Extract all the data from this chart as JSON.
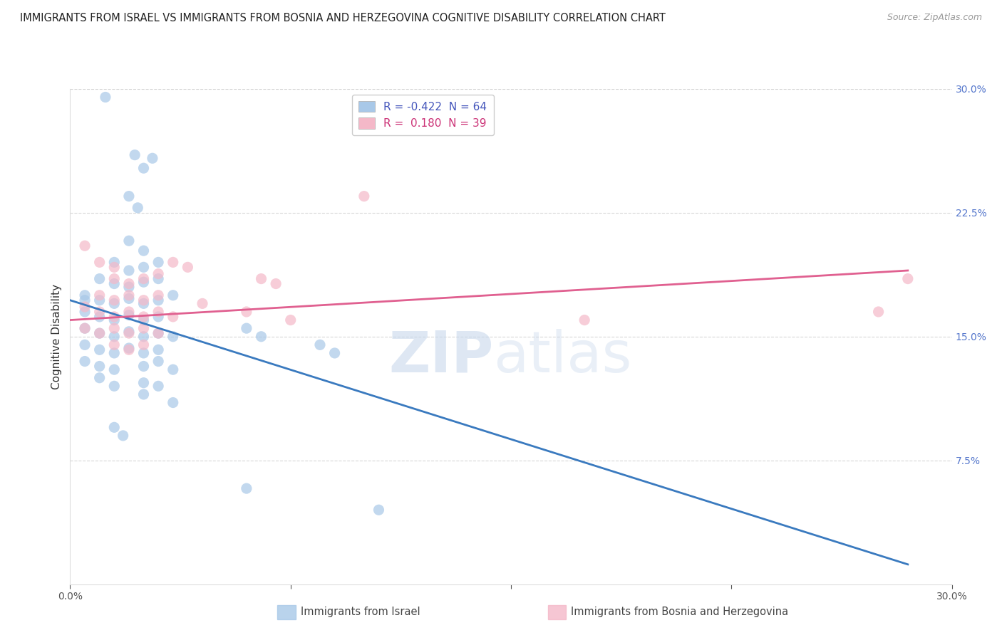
{
  "title": "IMMIGRANTS FROM ISRAEL VS IMMIGRANTS FROM BOSNIA AND HERZEGOVINA COGNITIVE DISABILITY CORRELATION CHART",
  "source": "Source: ZipAtlas.com",
  "ylabel": "Cognitive Disability",
  "legend_entry1": "R = -0.422  N = 64",
  "legend_entry2": "R =  0.180  N = 39",
  "legend_label1": "Immigrants from Israel",
  "legend_label2": "Immigrants from Bosnia and Herzegovina",
  "blue_color": "#a8c8e8",
  "pink_color": "#f4b8c8",
  "blue_line_color": "#3a7abf",
  "pink_line_color": "#e06090",
  "blue_scatter": [
    [
      0.5,
      17.2
    ],
    [
      1.2,
      29.5
    ],
    [
      2.2,
      26.0
    ],
    [
      2.5,
      25.2
    ],
    [
      2.8,
      25.8
    ],
    [
      2.0,
      23.5
    ],
    [
      2.3,
      22.8
    ],
    [
      2.0,
      20.8
    ],
    [
      2.5,
      20.2
    ],
    [
      1.5,
      19.5
    ],
    [
      2.0,
      19.0
    ],
    [
      2.5,
      19.2
    ],
    [
      3.0,
      19.5
    ],
    [
      1.0,
      18.5
    ],
    [
      1.5,
      18.2
    ],
    [
      2.0,
      18.0
    ],
    [
      2.5,
      18.3
    ],
    [
      3.0,
      18.5
    ],
    [
      0.5,
      17.5
    ],
    [
      1.0,
      17.2
    ],
    [
      1.5,
      17.0
    ],
    [
      2.0,
      17.3
    ],
    [
      2.5,
      17.0
    ],
    [
      3.0,
      17.2
    ],
    [
      3.5,
      17.5
    ],
    [
      0.5,
      16.5
    ],
    [
      1.0,
      16.2
    ],
    [
      1.5,
      16.0
    ],
    [
      2.0,
      16.3
    ],
    [
      2.5,
      16.0
    ],
    [
      3.0,
      16.2
    ],
    [
      0.5,
      15.5
    ],
    [
      1.0,
      15.2
    ],
    [
      1.5,
      15.0
    ],
    [
      2.0,
      15.3
    ],
    [
      2.5,
      15.0
    ],
    [
      3.0,
      15.2
    ],
    [
      3.5,
      15.0
    ],
    [
      0.5,
      14.5
    ],
    [
      1.0,
      14.2
    ],
    [
      1.5,
      14.0
    ],
    [
      2.0,
      14.3
    ],
    [
      2.5,
      14.0
    ],
    [
      3.0,
      14.2
    ],
    [
      0.5,
      13.5
    ],
    [
      1.0,
      13.2
    ],
    [
      1.5,
      13.0
    ],
    [
      2.5,
      13.2
    ],
    [
      3.0,
      13.5
    ],
    [
      3.5,
      13.0
    ],
    [
      1.0,
      12.5
    ],
    [
      1.5,
      12.0
    ],
    [
      2.5,
      12.2
    ],
    [
      3.0,
      12.0
    ],
    [
      2.5,
      11.5
    ],
    [
      3.5,
      11.0
    ],
    [
      1.5,
      9.5
    ],
    [
      1.8,
      9.0
    ],
    [
      6.0,
      15.5
    ],
    [
      6.5,
      15.0
    ],
    [
      8.5,
      14.5
    ],
    [
      9.0,
      14.0
    ],
    [
      6.0,
      5.8
    ],
    [
      10.5,
      4.5
    ]
  ],
  "pink_scatter": [
    [
      0.5,
      20.5
    ],
    [
      1.0,
      19.5
    ],
    [
      1.5,
      19.2
    ],
    [
      1.5,
      18.5
    ],
    [
      2.0,
      18.2
    ],
    [
      2.5,
      18.5
    ],
    [
      3.0,
      18.8
    ],
    [
      3.5,
      19.5
    ],
    [
      4.0,
      19.2
    ],
    [
      1.0,
      17.5
    ],
    [
      1.5,
      17.2
    ],
    [
      2.0,
      17.5
    ],
    [
      2.5,
      17.2
    ],
    [
      3.0,
      17.5
    ],
    [
      0.5,
      16.8
    ],
    [
      1.0,
      16.5
    ],
    [
      1.5,
      16.2
    ],
    [
      2.0,
      16.5
    ],
    [
      2.5,
      16.2
    ],
    [
      3.0,
      16.5
    ],
    [
      3.5,
      16.2
    ],
    [
      0.5,
      15.5
    ],
    [
      1.0,
      15.2
    ],
    [
      1.5,
      15.5
    ],
    [
      2.0,
      15.2
    ],
    [
      2.5,
      15.5
    ],
    [
      3.0,
      15.2
    ],
    [
      1.5,
      14.5
    ],
    [
      2.0,
      14.2
    ],
    [
      2.5,
      14.5
    ],
    [
      4.5,
      17.0
    ],
    [
      6.5,
      18.5
    ],
    [
      7.0,
      18.2
    ],
    [
      6.0,
      16.5
    ],
    [
      7.5,
      16.0
    ],
    [
      10.0,
      23.5
    ],
    [
      17.5,
      16.0
    ],
    [
      27.5,
      16.5
    ],
    [
      28.5,
      18.5
    ]
  ],
  "blue_trendline": [
    [
      0.0,
      17.2
    ],
    [
      28.5,
      1.2
    ]
  ],
  "pink_trendline": [
    [
      0.0,
      16.0
    ],
    [
      28.5,
      19.0
    ]
  ],
  "xmin": 0,
  "xmax": 30,
  "ymin": 0,
  "ymax": 30
}
